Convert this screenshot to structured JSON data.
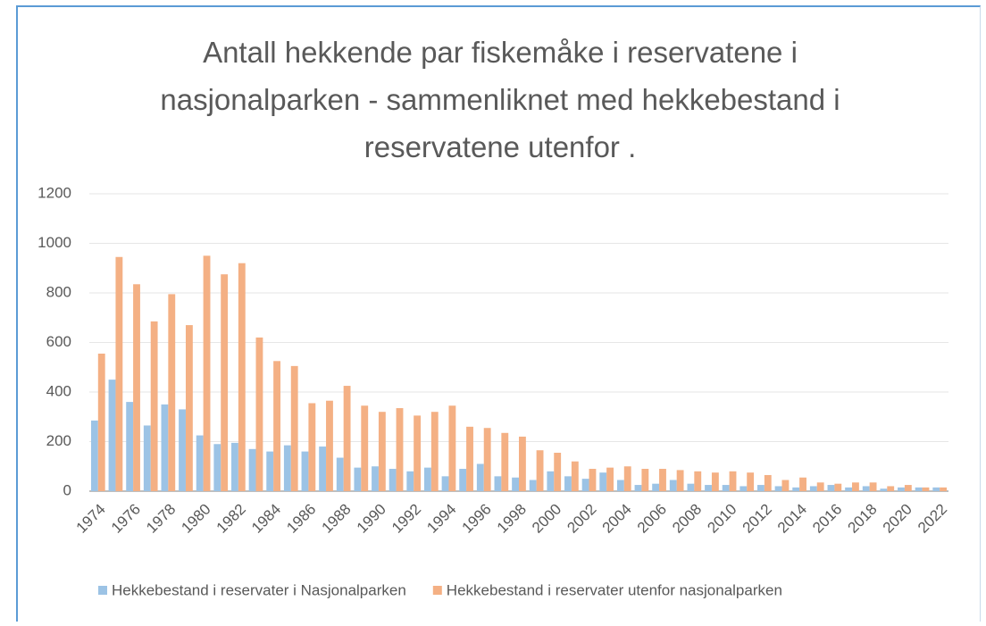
{
  "chart_data": {
    "type": "bar",
    "title": "Antall hekkende par fiskemåke i reservatene  i nasjonalparken - sammenliknet med hekkebestand i reservatene utenfor .",
    "categories": [
      "1974",
      null,
      "1976",
      null,
      "1978",
      null,
      "1980",
      null,
      "1982",
      null,
      "1984",
      null,
      "1986",
      null,
      "1988",
      null,
      "1990",
      null,
      "1992",
      null,
      "1994",
      null,
      "1996",
      null,
      "1998",
      null,
      "2000",
      null,
      "2002",
      null,
      "2004",
      null,
      "2006",
      null,
      "2008",
      null,
      "2010",
      null,
      "2012",
      null,
      "2014",
      null,
      "2016",
      null,
      "2018",
      null,
      "2020",
      null,
      "2022"
    ],
    "series": [
      {
        "name": "Hekkebestand i reservater i Nasjonalparken",
        "color": "#9cc3e5",
        "values": [
          285,
          450,
          360,
          265,
          350,
          330,
          225,
          190,
          195,
          170,
          160,
          185,
          160,
          180,
          135,
          95,
          100,
          90,
          80,
          95,
          60,
          90,
          110,
          60,
          55,
          45,
          80,
          60,
          50,
          75,
          45,
          25,
          30,
          45,
          30,
          25,
          25,
          20,
          25,
          20,
          15,
          20,
          25,
          15,
          20,
          10,
          15,
          15,
          15
        ]
      },
      {
        "name": "Hekkebestand i reservater utenfor nasjonalparken",
        "color": "#f4b084",
        "values": [
          555,
          945,
          835,
          685,
          795,
          670,
          950,
          875,
          920,
          620,
          525,
          505,
          355,
          365,
          425,
          345,
          320,
          335,
          305,
          320,
          345,
          260,
          255,
          235,
          220,
          165,
          155,
          120,
          90,
          95,
          100,
          90,
          90,
          85,
          80,
          75,
          80,
          75,
          65,
          45,
          55,
          35,
          30,
          35,
          35,
          20,
          25,
          15,
          15
        ]
      }
    ],
    "ylim": [
      0,
      1200
    ],
    "yticks": [
      0,
      200,
      400,
      600,
      800,
      1000,
      1200
    ],
    "grid": true,
    "legend": "bottom"
  }
}
